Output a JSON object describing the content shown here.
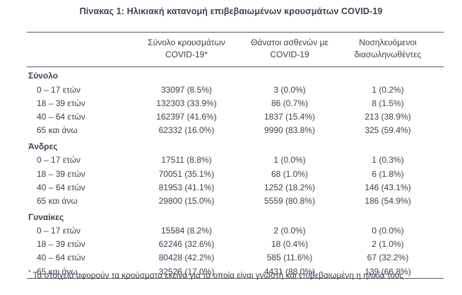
{
  "title": "Πίνακας 1: Ηλικιακή κατανομή επιβεβαιωμένων κρουσμάτων COVID-19",
  "colors": {
    "text": "#3a4350",
    "border": "#55585c",
    "background": "#ffffff"
  },
  "table": {
    "column_headers": [
      {
        "line1": "Σύνολο κρουσμάτων",
        "line2": "COVID-19*"
      },
      {
        "line1": "Θάνατοι ασθενών με",
        "line2": "COVID-19"
      },
      {
        "line1": "Νοσηλευόμενοι",
        "line2": "διασωληνωθέντες"
      }
    ],
    "sections": [
      {
        "label": "Σύνολο",
        "rows": [
          {
            "age": "0 – 17 ετών",
            "cases": "33097 (8.5%)",
            "deaths": "3 (0.0%)",
            "intubated": "1 (0.2%)"
          },
          {
            "age": "18 – 39 ετών",
            "cases": "132303 (33.9%)",
            "deaths": "86 (0.7%)",
            "intubated": "8 (1.5%)"
          },
          {
            "age": "40 – 64 ετών",
            "cases": "162397 (41.6%)",
            "deaths": "1837 (15.4%)",
            "intubated": "213 (38.9%)"
          },
          {
            "age": "65 και άνω",
            "cases": "62332 (16.0%)",
            "deaths": "9990 (83.8%)",
            "intubated": "325 (59.4%)"
          }
        ]
      },
      {
        "label": "Άνδρες",
        "rows": [
          {
            "age": "0 – 17 ετών",
            "cases": "17511 (8.8%)",
            "deaths": "1 (0.0%)",
            "intubated": "1 (0.3%)"
          },
          {
            "age": "18 – 39 ετών",
            "cases": "70051 (35.1%)",
            "deaths": "68 (1.0%)",
            "intubated": "6 (1.8%)"
          },
          {
            "age": "40 – 64 ετών",
            "cases": "81953 (41.1%)",
            "deaths": "1252 (18.2%)",
            "intubated": "146 (43.1%)"
          },
          {
            "age": "65 και άνω",
            "cases": "29800 (15.0%)",
            "deaths": "5559 (80.8%)",
            "intubated": "186 (54.9%)"
          }
        ]
      },
      {
        "label": "Γυναίκες",
        "rows": [
          {
            "age": "0 – 17 ετών",
            "cases": "15584 (8.2%)",
            "deaths": "2 (0.0%)",
            "intubated": "0 (0.0%)"
          },
          {
            "age": "18 – 39 ετών",
            "cases": "62246 (32.6%)",
            "deaths": "18 (0.4%)",
            "intubated": "2 (1.0%)"
          },
          {
            "age": "40 – 64 ετών",
            "cases": "80428 (42.2%)",
            "deaths": "585 (11.6%)",
            "intubated": "67 (32.2%)"
          },
          {
            "age": "65 και άνω",
            "cases": "32526 (17.0%)",
            "deaths": "4431 (88.0%)",
            "intubated": "139 (66.8%)"
          }
        ]
      }
    ],
    "footnote_marker": "*",
    "footnote": "Τα στοιχεία αφορούν τα κρούσματα εκείνα για τα οποία είναι γνωστή και επιβεβαιωμένη η ηλικία τους"
  }
}
